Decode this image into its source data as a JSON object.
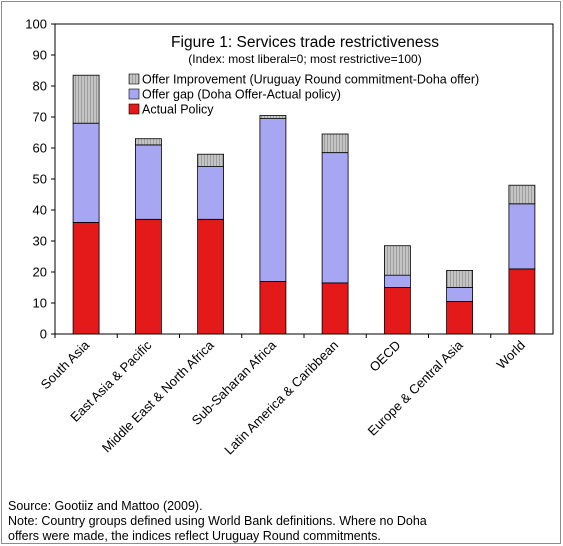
{
  "chart_data": {
    "type": "bar",
    "stacked": true,
    "title": "Figure 1: Services trade restrictiveness",
    "subtitle": "(Index: most liberal=0; most restrictive=100)",
    "categories": [
      "South Asia",
      "East Asia & Pacific",
      "Middle East & North Africa",
      "Sub-Saharan Africa",
      "Latin America & Caribbean",
      "OECD",
      "Europe & Central Asia",
      "World"
    ],
    "series": [
      {
        "name": "Actual Policy",
        "color": "#e41a1a",
        "values": [
          36,
          37,
          37,
          17,
          16.5,
          15,
          10.5,
          21
        ]
      },
      {
        "name": "Offer gap (Doha Offer-Actual policy)",
        "color": "#a6a6f2",
        "values": [
          32,
          24,
          17,
          52.5,
          42,
          4,
          4.5,
          21
        ]
      },
      {
        "name": "Offer Improvement (Uruguay Round commitment-Doha offer)",
        "color": "#c8c8c8",
        "values": [
          15.5,
          2,
          4,
          1,
          6,
          9.5,
          5.5,
          6
        ]
      }
    ],
    "legend_order": [
      "Offer Improvement (Uruguay Round commitment-Doha offer)",
      "Offer gap (Doha Offer-Actual policy)",
      "Actual Policy"
    ],
    "legend_position": "top-left",
    "ylim": [
      0,
      100
    ],
    "yticks": [
      0,
      10,
      20,
      30,
      40,
      50,
      60,
      70,
      80,
      90,
      100
    ],
    "grid": false
  },
  "source": "Source:  Gootiiz and Mattoo (2009).",
  "note_line1": "Note: Country groups defined using World Bank definitions. Where no Doha",
  "note_line2": "offers were made, the indices reflect Uruguay Round commitments."
}
